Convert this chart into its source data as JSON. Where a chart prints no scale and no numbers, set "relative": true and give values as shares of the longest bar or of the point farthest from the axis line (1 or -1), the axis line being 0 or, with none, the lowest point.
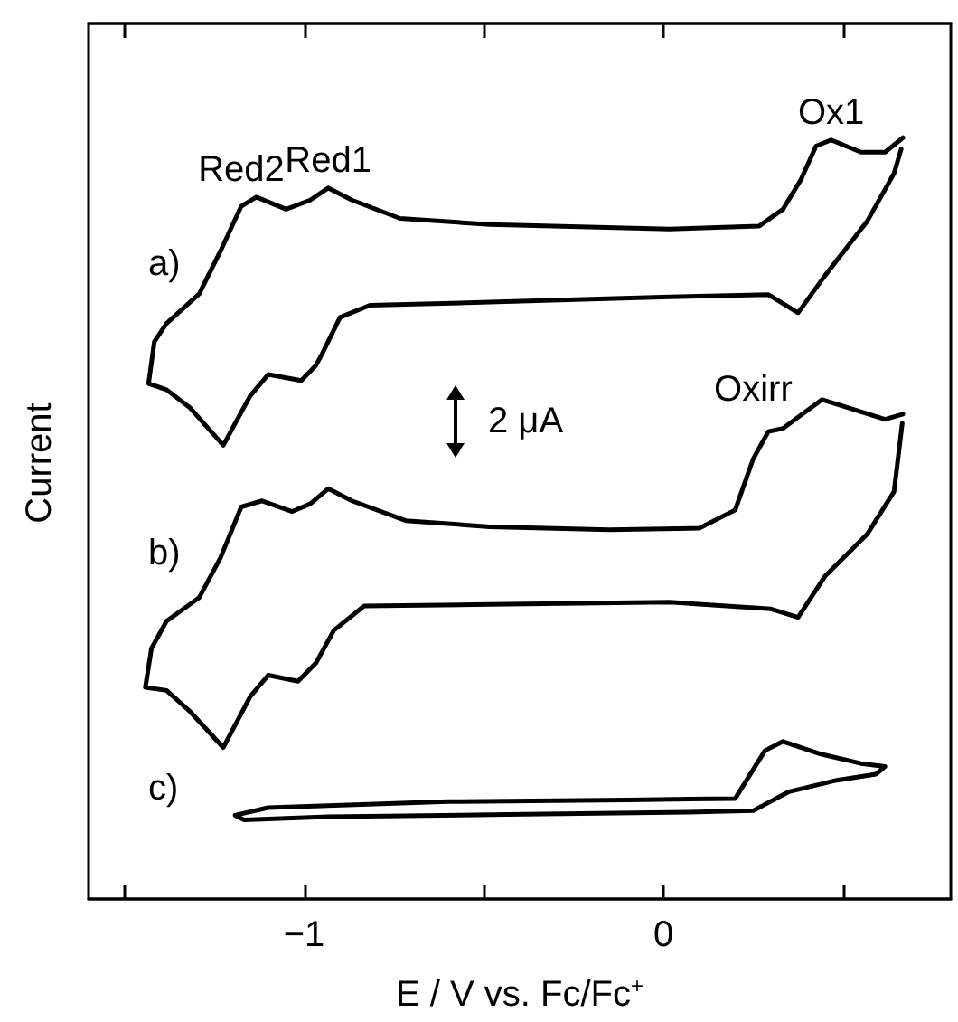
{
  "chart_data": {
    "type": "line",
    "relative": true,
    "xlabel": "E / V vs. Fc/Fc$^{+}$",
    "ylabel": "Current",
    "xlim": [
      -1.6,
      0.8
    ],
    "xticks": [
      {
        "value": -1.5,
        "label": null
      },
      {
        "value": -1,
        "label": "−1"
      },
      {
        "value": -0.5,
        "label": null
      },
      {
        "value": 0,
        "label": "0"
      },
      {
        "value": 0.5,
        "label": null
      }
    ],
    "legend": false,
    "line_style": "solid",
    "series": [
      {
        "name": "a)",
        "color": "#000000",
        "x": [
          0.667,
          0.617,
          0.55,
          0.467,
          0.425,
          0.383,
          0.333,
          0.267,
          0.017,
          -0.483,
          -0.733,
          -0.867,
          -0.933,
          -0.983,
          -1.05,
          -1.133,
          -1.175,
          -1.233,
          -1.292,
          -1.383,
          -1.417,
          -1.433,
          -1.383,
          -1.317,
          -1.225,
          -1.15,
          -1.1,
          -1.008,
          -0.967,
          -0.95,
          -0.9,
          -0.817,
          -0.483,
          0.017,
          0.292,
          0.375,
          0.45,
          0.567,
          0.642,
          0.662
        ],
        "values": [
          1.0,
          0.981,
          0.981,
          0.997,
          0.989,
          0.945,
          0.906,
          0.884,
          0.88,
          0.886,
          0.894,
          0.918,
          0.934,
          0.918,
          0.906,
          0.922,
          0.91,
          0.851,
          0.795,
          0.756,
          0.732,
          0.677,
          0.669,
          0.645,
          0.596,
          0.661,
          0.689,
          0.681,
          0.701,
          0.716,
          0.764,
          0.78,
          0.784,
          0.791,
          0.794,
          0.77,
          0.819,
          0.89,
          0.953,
          0.985
        ]
      },
      {
        "name": "b)",
        "color": "#000000",
        "x": [
          0.667,
          0.617,
          0.517,
          0.442,
          0.375,
          0.333,
          0.292,
          0.25,
          0.2,
          0.1,
          -0.15,
          -0.483,
          -0.717,
          -0.867,
          -0.933,
          -0.983,
          -1.033,
          -1.117,
          -1.175,
          -1.233,
          -1.292,
          -1.383,
          -1.425,
          -1.442,
          -1.383,
          -1.317,
          -1.225,
          -1.15,
          -1.1,
          -1.017,
          -0.967,
          -0.917,
          -0.833,
          -0.483,
          0.017,
          0.3,
          0.375,
          0.45,
          0.567,
          0.642,
          0.665
        ],
        "values": [
          0.637,
          0.63,
          0.645,
          0.656,
          0.633,
          0.618,
          0.614,
          0.578,
          0.511,
          0.487,
          0.485,
          0.489,
          0.497,
          0.523,
          0.539,
          0.519,
          0.509,
          0.523,
          0.515,
          0.448,
          0.396,
          0.365,
          0.329,
          0.278,
          0.274,
          0.246,
          0.199,
          0.266,
          0.294,
          0.286,
          0.31,
          0.353,
          0.385,
          0.387,
          0.39,
          0.381,
          0.37,
          0.424,
          0.479,
          0.535,
          0.625
        ]
      },
      {
        "name": "c)",
        "color": "#000000",
        "x": [
          0.617,
          0.55,
          0.433,
          0.333,
          0.283,
          0.2,
          -0.1,
          -0.6,
          -1.1,
          -1.192,
          -1.167,
          -0.933,
          -0.433,
          0.067,
          0.25,
          0.35,
          0.483,
          0.592,
          0.612
        ],
        "values": [
          0.174,
          0.178,
          0.191,
          0.207,
          0.195,
          0.132,
          0.13,
          0.128,
          0.12,
          0.11,
          0.104,
          0.108,
          0.111,
          0.114,
          0.116,
          0.141,
          0.156,
          0.164,
          0.172
        ]
      }
    ],
    "annotations": [
      {
        "text": "Red2",
        "x": -1.175,
        "y": 0.91
      },
      {
        "text": "Red1",
        "x": -0.933,
        "y": 0.934
      },
      {
        "text": "Ox1",
        "x": 0.467,
        "y": 0.997
      },
      {
        "text": "Oxirr",
        "x": 0.25,
        "y": 0.578
      },
      "2 μA"
    ]
  }
}
